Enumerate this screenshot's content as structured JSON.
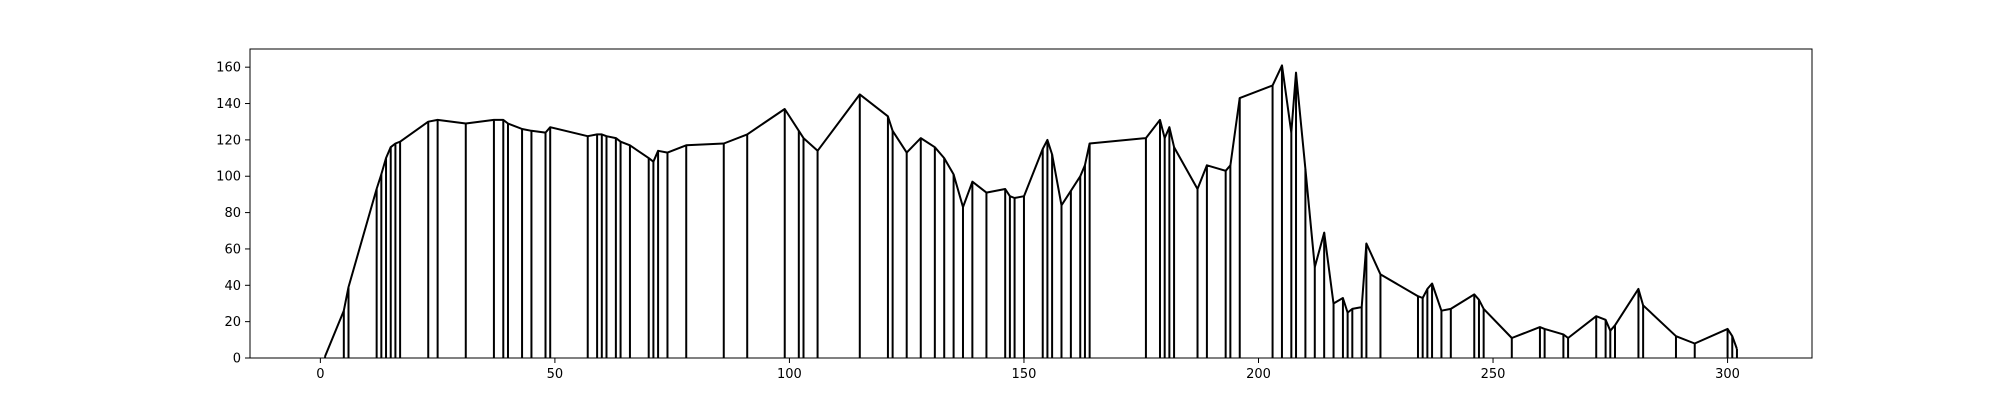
{
  "chart_data": {
    "type": "line",
    "title": "",
    "xlabel": "",
    "ylabel": "",
    "xlim": [
      -15,
      318
    ],
    "ylim": [
      0,
      170
    ],
    "xticks": [
      0,
      50,
      100,
      150,
      200,
      250,
      300
    ],
    "yticks": [
      0,
      20,
      40,
      60,
      80,
      100,
      120,
      140,
      160
    ],
    "grid": false,
    "legend": "none",
    "line_color": "#000000",
    "series": [
      {
        "x": [
          1,
          5,
          6,
          12,
          13,
          14,
          15,
          16,
          17,
          23,
          25,
          31,
          37,
          39,
          40,
          43,
          45,
          48,
          49,
          57,
          59,
          60,
          61,
          63,
          64,
          66,
          70,
          71,
          72,
          74,
          78,
          86,
          91,
          99,
          102,
          103,
          106,
          115,
          121,
          122,
          125,
          128,
          131,
          133,
          135,
          137,
          139,
          142,
          146,
          147,
          148,
          150,
          154,
          155,
          156,
          158,
          160,
          162,
          163,
          164,
          176,
          179,
          180,
          181,
          182,
          187,
          189,
          193,
          194,
          196,
          203,
          205,
          207,
          208,
          210,
          212,
          214,
          216,
          218,
          219,
          220,
          222,
          223,
          226,
          234,
          235,
          236,
          237,
          239,
          241,
          246,
          247,
          248,
          254,
          260,
          261,
          265,
          266,
          272,
          274,
          275,
          276,
          281,
          282,
          289,
          293,
          300,
          301,
          302
        ],
        "y": [
          1,
          26,
          39,
          93,
          101,
          110,
          116,
          118,
          119,
          130,
          131,
          129,
          131,
          131,
          129,
          126,
          125,
          124,
          127,
          122,
          123,
          123,
          122,
          121,
          119,
          117,
          110,
          108,
          114,
          113,
          117,
          118,
          123,
          137,
          125,
          121,
          114,
          145,
          133,
          125,
          113,
          121,
          116,
          110,
          101,
          83,
          97,
          91,
          93,
          89,
          88,
          89,
          115,
          120,
          112,
          84,
          92,
          100,
          106,
          118,
          121,
          131,
          121,
          127,
          116,
          93,
          106,
          103,
          106,
          143,
          150,
          161,
          124,
          157,
          104,
          50,
          69,
          30,
          33,
          25,
          27,
          28,
          63,
          46,
          34,
          33,
          38,
          41,
          26,
          27,
          35,
          32,
          27,
          11,
          17,
          16,
          13,
          11,
          23,
          21,
          15,
          18,
          38,
          29,
          12,
          8,
          16,
          12,
          5
        ]
      }
    ]
  }
}
